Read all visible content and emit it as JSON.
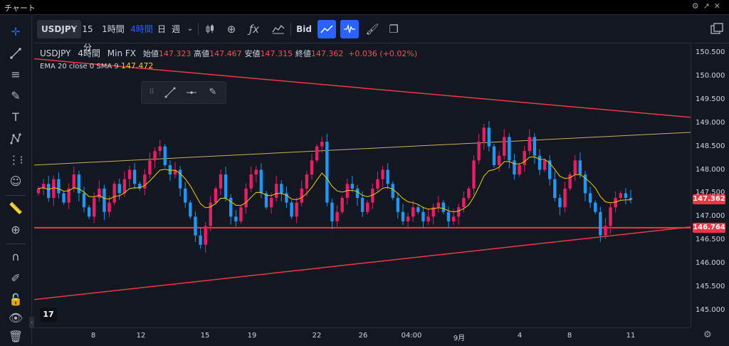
{
  "window": {
    "title": "チャート",
    "controls": [
      "⚙",
      "↗",
      "✕"
    ]
  },
  "toolbar": {
    "symbol": "USDJPY",
    "intervals": [
      "15分",
      "1時間",
      "4時間",
      "日",
      "週"
    ],
    "active_interval": "4時間",
    "price_type": "Bid"
  },
  "legend": {
    "symbol": "USDJPY",
    "interval": "4時間",
    "exchange": "Min FX",
    "open_label": "始値",
    "open": "147.323",
    "high_label": "高値",
    "high": "147.467",
    "low_label": "安値",
    "low": "147.315",
    "close_label": "終値",
    "close": "147.362",
    "change": "+0.036 (+0.02%)"
  },
  "ema": {
    "label": "EMA 20 close 0 SMA 9",
    "value": "147.472"
  },
  "price_axis": {
    "ticks": [
      "150.500",
      "150.000",
      "149.500",
      "149.000",
      "148.500",
      "148.000",
      "147.500",
      "147.000",
      "146.500",
      "146.000",
      "145.500",
      "145.000"
    ],
    "current_price": "147.362",
    "current_color": "#f23645",
    "hline_price": "146.764",
    "hline_color": "#f23645"
  },
  "time_axis": {
    "ticks": [
      "8",
      "12",
      "15",
      "19",
      "22",
      "26",
      "04:00",
      "9月",
      "4",
      "8",
      "11"
    ]
  },
  "colors": {
    "up": "#e91e63",
    "down": "#2196f3",
    "trend": "#f23645",
    "channel": "#c9b25a",
    "ema": "#f2d000",
    "accent": "#2962ff"
  },
  "logo": "17"
}
